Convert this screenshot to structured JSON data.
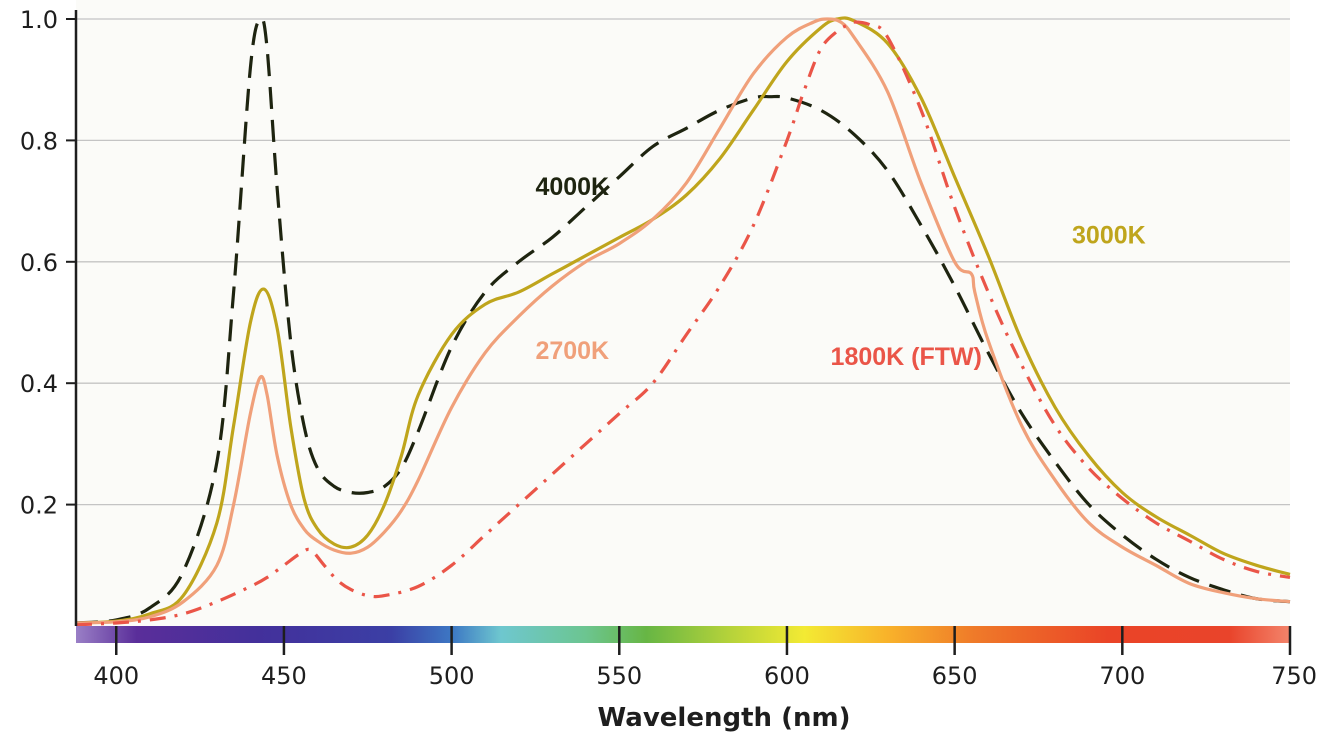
{
  "chart_data": {
    "type": "line",
    "title": "",
    "xlabel": "Wavelength (nm)",
    "ylabel": "",
    "xlim": [
      388,
      750
    ],
    "ylim": [
      0,
      1.0
    ],
    "x_ticks": [
      "400",
      "450",
      "500",
      "550",
      "600",
      "650",
      "700",
      "750"
    ],
    "y_ticks": [
      "0.2",
      "0.4",
      "0.6",
      "0.8",
      "1.0"
    ],
    "grid": "horizontal",
    "legend": "inline labels",
    "spectrum_bar": true,
    "series": [
      {
        "name": "4000K",
        "color": "#1e2410",
        "dash": "dashed",
        "x": [
          388,
          400,
          410,
          420,
          430,
          435,
          440,
          443,
          445,
          448,
          452,
          456,
          460,
          465,
          470,
          475,
          480,
          485,
          490,
          500,
          510,
          520,
          530,
          540,
          550,
          560,
          570,
          580,
          590,
          595,
          600,
          610,
          620,
          630,
          640,
          650,
          660,
          670,
          680,
          690,
          700,
          710,
          720,
          730,
          740,
          750
        ],
        "y": [
          0.005,
          0.01,
          0.03,
          0.09,
          0.27,
          0.55,
          0.92,
          1.0,
          0.95,
          0.72,
          0.47,
          0.33,
          0.26,
          0.23,
          0.22,
          0.22,
          0.23,
          0.26,
          0.32,
          0.46,
          0.55,
          0.6,
          0.64,
          0.69,
          0.74,
          0.79,
          0.82,
          0.85,
          0.87,
          0.872,
          0.87,
          0.85,
          0.81,
          0.75,
          0.66,
          0.56,
          0.45,
          0.35,
          0.27,
          0.2,
          0.15,
          0.11,
          0.08,
          0.06,
          0.045,
          0.04
        ]
      },
      {
        "name": "3000K",
        "color": "#bfa51c",
        "dash": "solid",
        "x": [
          388,
          400,
          410,
          420,
          430,
          435,
          440,
          444,
          448,
          452,
          456,
          460,
          465,
          470,
          475,
          480,
          485,
          490,
          500,
          510,
          520,
          530,
          540,
          550,
          560,
          570,
          580,
          590,
          600,
          610,
          615,
          620,
          630,
          640,
          650,
          660,
          670,
          680,
          690,
          700,
          710,
          720,
          730,
          740,
          750
        ],
        "y": [
          0.005,
          0.008,
          0.02,
          0.05,
          0.17,
          0.33,
          0.5,
          0.555,
          0.49,
          0.33,
          0.21,
          0.16,
          0.135,
          0.13,
          0.15,
          0.2,
          0.28,
          0.38,
          0.48,
          0.53,
          0.55,
          0.58,
          0.61,
          0.64,
          0.67,
          0.71,
          0.77,
          0.85,
          0.93,
          0.985,
          1.0,
          0.997,
          0.96,
          0.87,
          0.74,
          0.61,
          0.47,
          0.36,
          0.28,
          0.22,
          0.18,
          0.15,
          0.12,
          0.1,
          0.085
        ]
      },
      {
        "name": "2700K",
        "color": "#f0a07a",
        "dash": "solid",
        "x": [
          388,
          400,
          410,
          420,
          430,
          435,
          440,
          443,
          445,
          448,
          452,
          456,
          460,
          465,
          470,
          475,
          480,
          485,
          490,
          500,
          510,
          520,
          530,
          540,
          550,
          560,
          570,
          580,
          590,
          600,
          608,
          612,
          616,
          620,
          630,
          640,
          650,
          655,
          656,
          660,
          670,
          680,
          690,
          700,
          710,
          720,
          730,
          740,
          750
        ],
        "y": [
          0.005,
          0.007,
          0.015,
          0.04,
          0.1,
          0.2,
          0.35,
          0.41,
          0.38,
          0.28,
          0.2,
          0.16,
          0.14,
          0.125,
          0.12,
          0.13,
          0.155,
          0.19,
          0.24,
          0.36,
          0.45,
          0.51,
          0.56,
          0.6,
          0.63,
          0.67,
          0.73,
          0.82,
          0.91,
          0.97,
          0.995,
          1.0,
          0.995,
          0.97,
          0.88,
          0.73,
          0.6,
          0.58,
          0.55,
          0.47,
          0.33,
          0.24,
          0.17,
          0.13,
          0.1,
          0.07,
          0.055,
          0.045,
          0.04
        ]
      },
      {
        "name": "1800K (FTW)",
        "color": "#ea5548",
        "dash": "dashdot",
        "x": [
          388,
          400,
          410,
          420,
          430,
          440,
          445,
          450,
          455,
          458,
          462,
          466,
          470,
          475,
          480,
          490,
          500,
          510,
          520,
          530,
          540,
          550,
          560,
          570,
          580,
          590,
          600,
          605,
          610,
          615,
          618,
          620,
          625,
          630,
          640,
          650,
          660,
          670,
          680,
          690,
          700,
          710,
          720,
          730,
          740,
          750
        ],
        "y": [
          0.002,
          0.005,
          0.01,
          0.02,
          0.04,
          0.065,
          0.08,
          0.1,
          0.12,
          0.125,
          0.1,
          0.075,
          0.06,
          0.05,
          0.05,
          0.065,
          0.1,
          0.15,
          0.2,
          0.25,
          0.3,
          0.35,
          0.4,
          0.48,
          0.56,
          0.66,
          0.8,
          0.88,
          0.95,
          0.98,
          0.99,
          0.995,
          0.99,
          0.97,
          0.85,
          0.69,
          0.55,
          0.43,
          0.33,
          0.26,
          0.21,
          0.17,
          0.14,
          0.11,
          0.09,
          0.08
        ]
      }
    ],
    "annotations": [
      {
        "text": "4000K",
        "x": 525,
        "y": 0.71,
        "color": "#1e2410"
      },
      {
        "text": "3000K",
        "x": 685,
        "y": 0.63,
        "color": "#bfa51c"
      },
      {
        "text": "2700K",
        "x": 525,
        "y": 0.44,
        "color": "#f0a07a"
      },
      {
        "text": "1800K (FTW)",
        "x": 613,
        "y": 0.43,
        "color": "#ea5548"
      }
    ]
  }
}
